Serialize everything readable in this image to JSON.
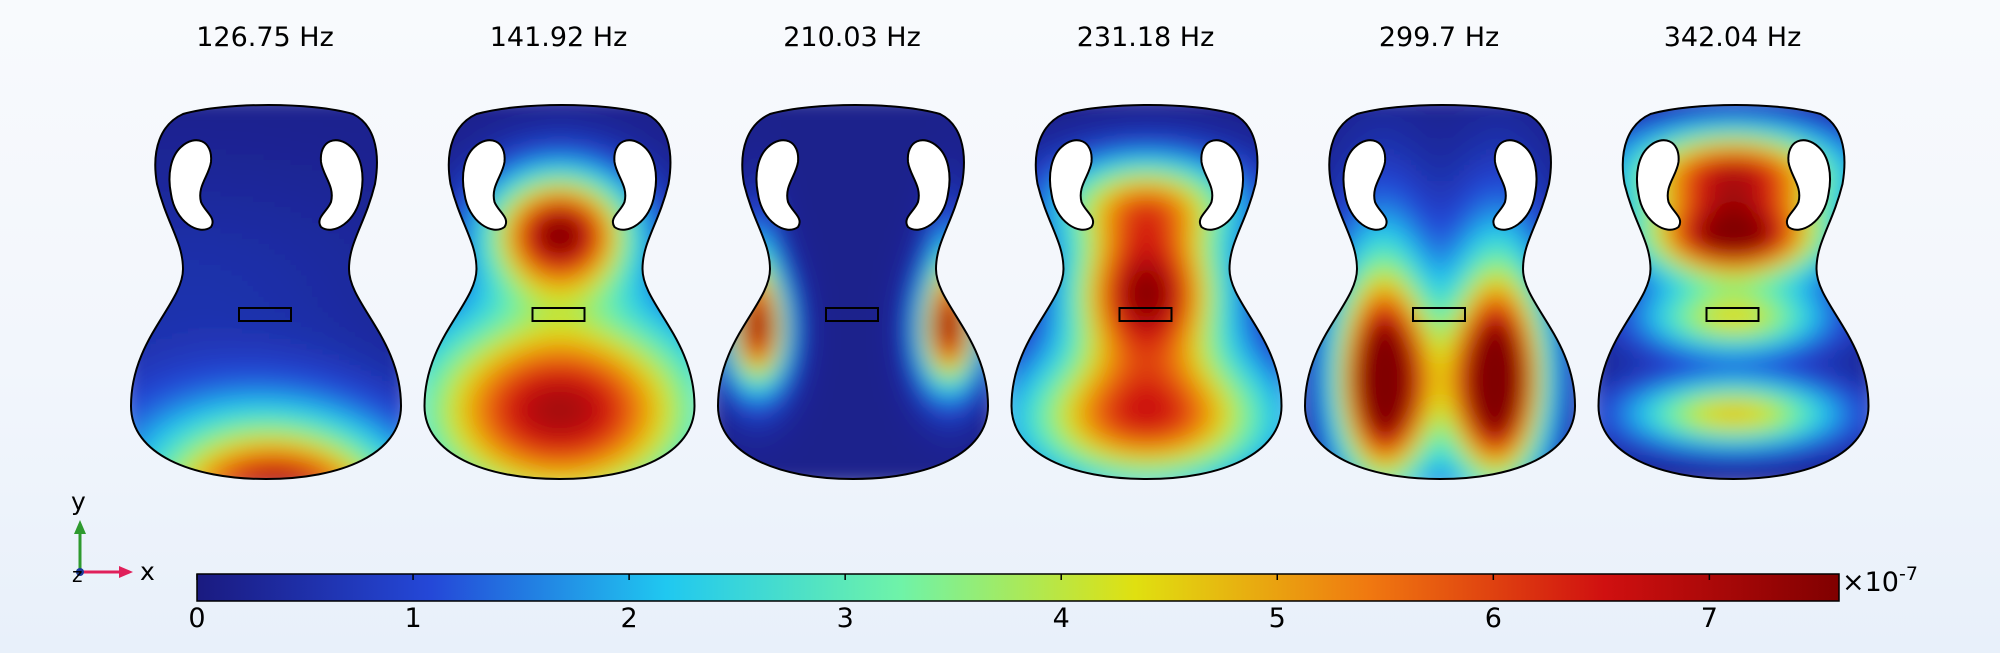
{
  "modes": [
    {
      "label": "126.75 Hz",
      "field": [
        [
          0.85,
          0.55,
          1.05,
          0.28,
          0.12,
          0.05
        ],
        [
          0.25,
          0.45,
          0.9,
          0.35,
          0.13,
          0.05
        ],
        [
          0.05,
          0.22,
          0.5,
          0.55,
          0.22,
          0.15
        ]
      ]
    },
    {
      "label": "141.92 Hz",
      "field": [
        [
          0.5,
          0.5,
          0.32,
          0.17,
          0.1,
          0.05
        ],
        [
          0.5,
          0.5,
          0.38,
          0.17,
          0.1,
          0.05
        ],
        [
          0.92,
          0.5,
          0.8,
          0.35,
          0.18,
          0.2
        ]
      ]
    },
    {
      "label": "210.03 Hz",
      "field": [
        [
          0.85,
          0.17,
          0.6,
          0.07,
          0.1,
          0.05
        ],
        [
          0.85,
          0.83,
          0.6,
          0.07,
          0.1,
          0.05
        ],
        [
          0.25,
          0.17,
          0.45,
          0.05,
          0.12,
          0.18
        ],
        [
          0.25,
          0.83,
          0.45,
          0.05,
          0.12,
          0.18
        ]
      ]
    },
    {
      "label": "231.18 Hz",
      "field": [
        [
          0.55,
          0.5,
          0.27,
          0.22,
          0.08,
          0.1
        ],
        [
          0.95,
          0.5,
          0.5,
          0.18,
          0.13,
          0.2
        ],
        [
          0.8,
          0.5,
          0.82,
          0.3,
          0.12,
          0.1
        ]
      ]
    },
    {
      "label": "299.7 Hz",
      "field": [
        [
          1.0,
          0.31,
          0.75,
          0.11,
          0.16,
          0.1
        ],
        [
          1.0,
          0.69,
          0.75,
          0.11,
          0.16,
          0.1
        ],
        [
          0.35,
          0.3,
          0.55,
          0.12,
          0.22,
          0.1
        ],
        [
          0.35,
          0.7,
          0.55,
          0.12,
          0.22,
          0.1
        ]
      ]
    },
    {
      "label": "342.04 Hz",
      "field": [
        [
          0.85,
          0.5,
          0.2,
          0.25,
          0.08,
          0.05
        ],
        [
          0.95,
          0.5,
          0.37,
          0.22,
          0.07,
          0.05
        ],
        [
          0.55,
          0.5,
          0.57,
          0.22,
          0.06,
          0.05
        ],
        [
          0.6,
          0.5,
          0.81,
          0.25,
          0.06,
          0.05
        ]
      ]
    }
  ],
  "colorbar": {
    "ticks": [
      "0",
      "1",
      "2",
      "3",
      "4",
      "5",
      "6",
      "7"
    ],
    "max_value": 7.6,
    "exponent_base": "×10",
    "exponent_power": "-7",
    "colors": [
      "#1a1a80",
      "#2448d8",
      "#20c8f0",
      "#6ff3a8",
      "#e0e010",
      "#f07810",
      "#d01010",
      "#800000"
    ]
  },
  "triad": {
    "x_label": "x",
    "y_label": "y",
    "z_label": "z",
    "x_color": "#e0205a",
    "y_color": "#2e9a2e",
    "z_color": "#1a3a9a"
  }
}
